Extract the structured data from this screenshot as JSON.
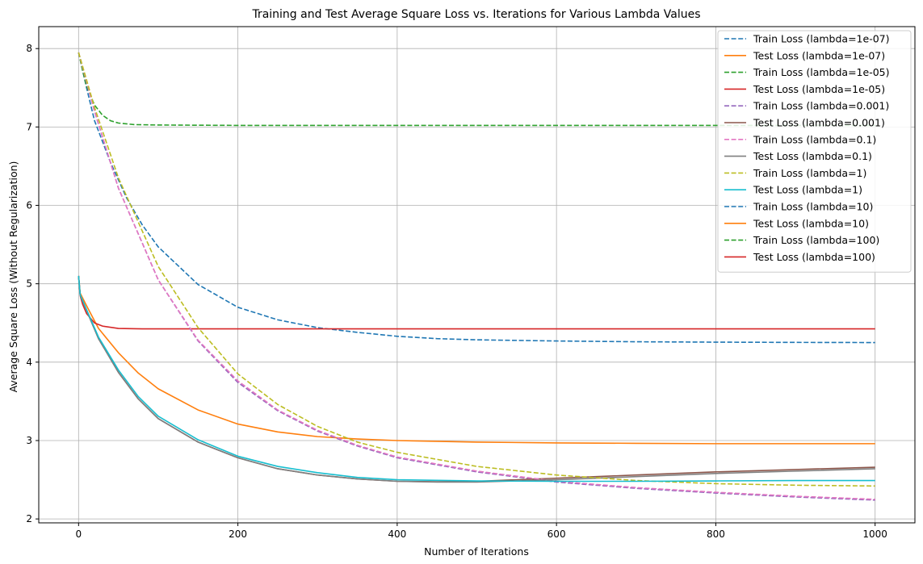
{
  "chart_data": {
    "type": "line",
    "title": "Training and Test Average Square Loss vs. Iterations for Various Lambda Values",
    "xlabel": "Number of Iterations",
    "ylabel": "Average Square Loss (Without Regularization)",
    "xlim": [
      -50,
      1050
    ],
    "ylim": [
      1.95,
      8.28
    ],
    "xticks": [
      0,
      200,
      400,
      600,
      800,
      1000
    ],
    "yticks": [
      2,
      3,
      4,
      5,
      6,
      7,
      8
    ],
    "xtick_labels": [
      "0",
      "200",
      "400",
      "600",
      "800",
      "1000"
    ],
    "ytick_labels": [
      "2",
      "3",
      "4",
      "5",
      "6",
      "7",
      "8"
    ],
    "grid": true,
    "legend": "top-right",
    "series": [
      {
        "name": "Train Loss (lambda=1e-07)",
        "color": "#1f77b4",
        "dash": "dashed",
        "points": [
          [
            0,
            7.95
          ],
          [
            10,
            7.5
          ],
          [
            20,
            7.08
          ],
          [
            40,
            6.55
          ],
          [
            60,
            6.1
          ],
          [
            80,
            5.75
          ],
          [
            100,
            5.47
          ],
          [
            150,
            4.99
          ],
          [
            200,
            4.7
          ],
          [
            250,
            4.54
          ],
          [
            300,
            4.44
          ],
          [
            350,
            4.38
          ],
          [
            400,
            4.33
          ],
          [
            450,
            4.3
          ],
          [
            500,
            4.285
          ],
          [
            600,
            4.27
          ],
          [
            700,
            4.26
          ],
          [
            800,
            4.255
          ],
          [
            900,
            4.252
          ],
          [
            1000,
            4.25
          ]
        ]
      },
      {
        "name": "Test Loss (lambda=1e-07)",
        "color": "#ff7f0e",
        "dash": "solid",
        "points": [
          [
            0,
            5.1
          ],
          [
            2,
            4.88
          ],
          [
            10,
            4.72
          ],
          [
            25,
            4.43
          ],
          [
            50,
            4.12
          ],
          [
            75,
            3.86
          ],
          [
            100,
            3.66
          ],
          [
            150,
            3.39
          ],
          [
            200,
            3.21
          ],
          [
            250,
            3.11
          ],
          [
            300,
            3.05
          ],
          [
            350,
            3.02
          ],
          [
            400,
            3.0
          ],
          [
            500,
            2.98
          ],
          [
            600,
            2.97
          ],
          [
            700,
            2.965
          ],
          [
            800,
            2.96
          ],
          [
            900,
            2.96
          ],
          [
            1000,
            2.96
          ]
        ]
      },
      {
        "name": "Train Loss (lambda=1e-05)",
        "color": "#2ca02c",
        "dash": "dashed",
        "points": [
          [
            0,
            7.95
          ],
          [
            5,
            7.72
          ],
          [
            10,
            7.52
          ],
          [
            20,
            7.28
          ],
          [
            30,
            7.15
          ],
          [
            40,
            7.08
          ],
          [
            50,
            7.05
          ],
          [
            70,
            7.03
          ],
          [
            100,
            7.025
          ],
          [
            200,
            7.02
          ],
          [
            400,
            7.02
          ],
          [
            600,
            7.02
          ],
          [
            800,
            7.02
          ],
          [
            1000,
            7.02
          ]
        ]
      },
      {
        "name": "Test Loss (lambda=1e-05)",
        "color": "#d62728",
        "dash": "solid",
        "points": [
          [
            0,
            5.1
          ],
          [
            2,
            4.85
          ],
          [
            5,
            4.74
          ],
          [
            10,
            4.62
          ],
          [
            20,
            4.5
          ],
          [
            30,
            4.46
          ],
          [
            50,
            4.43
          ],
          [
            80,
            4.425
          ],
          [
            150,
            4.425
          ],
          [
            400,
            4.425
          ],
          [
            700,
            4.425
          ],
          [
            1000,
            4.425
          ]
        ]
      },
      {
        "name": "Train Loss (lambda=0.001)",
        "color": "#9467bd",
        "dash": "dashed",
        "points": [
          [
            0,
            7.95
          ],
          [
            20,
            7.2
          ],
          [
            50,
            6.22
          ],
          [
            100,
            5.05
          ],
          [
            150,
            4.27
          ],
          [
            200,
            3.74
          ],
          [
            250,
            3.38
          ],
          [
            300,
            3.12
          ],
          [
            350,
            2.93
          ],
          [
            400,
            2.78
          ],
          [
            500,
            2.6
          ],
          [
            600,
            2.47
          ],
          [
            700,
            2.39
          ],
          [
            800,
            2.33
          ],
          [
            900,
            2.28
          ],
          [
            1000,
            2.24
          ]
        ]
      },
      {
        "name": "Test Loss (lambda=0.001)",
        "color": "#8c564b",
        "dash": "solid",
        "points": [
          [
            0,
            5.1
          ],
          [
            2,
            4.86
          ],
          [
            10,
            4.66
          ],
          [
            25,
            4.3
          ],
          [
            50,
            3.87
          ],
          [
            75,
            3.53
          ],
          [
            100,
            3.28
          ],
          [
            150,
            2.98
          ],
          [
            200,
            2.78
          ],
          [
            250,
            2.64
          ],
          [
            300,
            2.56
          ],
          [
            350,
            2.51
          ],
          [
            400,
            2.48
          ],
          [
            450,
            2.475
          ],
          [
            500,
            2.48
          ],
          [
            600,
            2.52
          ],
          [
            700,
            2.56
          ],
          [
            800,
            2.6
          ],
          [
            900,
            2.63
          ],
          [
            1000,
            2.66
          ]
        ]
      },
      {
        "name": "Train Loss (lambda=0.1)",
        "color": "#e377c2",
        "dash": "dashed",
        "points": [
          [
            0,
            7.95
          ],
          [
            20,
            7.2
          ],
          [
            50,
            6.22
          ],
          [
            100,
            5.05
          ],
          [
            150,
            4.28
          ],
          [
            200,
            3.76
          ],
          [
            250,
            3.39
          ],
          [
            300,
            3.13
          ],
          [
            350,
            2.94
          ],
          [
            400,
            2.79
          ],
          [
            500,
            2.61
          ],
          [
            600,
            2.48
          ],
          [
            700,
            2.4
          ],
          [
            800,
            2.34
          ],
          [
            900,
            2.29
          ],
          [
            1000,
            2.25
          ]
        ]
      },
      {
        "name": "Test Loss (lambda=0.1)",
        "color": "#7f7f7f",
        "dash": "solid",
        "points": [
          [
            0,
            5.1
          ],
          [
            2,
            4.86
          ],
          [
            10,
            4.66
          ],
          [
            25,
            4.3
          ],
          [
            50,
            3.87
          ],
          [
            75,
            3.53
          ],
          [
            100,
            3.28
          ],
          [
            150,
            2.98
          ],
          [
            200,
            2.78
          ],
          [
            250,
            2.64
          ],
          [
            300,
            2.56
          ],
          [
            350,
            2.51
          ],
          [
            400,
            2.48
          ],
          [
            450,
            2.47
          ],
          [
            500,
            2.47
          ],
          [
            600,
            2.5
          ],
          [
            700,
            2.54
          ],
          [
            800,
            2.58
          ],
          [
            900,
            2.61
          ],
          [
            1000,
            2.64
          ]
        ]
      },
      {
        "name": "Train Loss (lambda=1)",
        "color": "#bcbd22",
        "dash": "dashed",
        "points": [
          [
            0,
            7.95
          ],
          [
            20,
            7.25
          ],
          [
            50,
            6.35
          ],
          [
            100,
            5.22
          ],
          [
            150,
            4.44
          ],
          [
            200,
            3.85
          ],
          [
            250,
            3.46
          ],
          [
            300,
            3.18
          ],
          [
            350,
            2.98
          ],
          [
            400,
            2.85
          ],
          [
            500,
            2.67
          ],
          [
            600,
            2.56
          ],
          [
            700,
            2.49
          ],
          [
            800,
            2.45
          ],
          [
            900,
            2.43
          ],
          [
            1000,
            2.42
          ]
        ]
      },
      {
        "name": "Test Loss (lambda=1)",
        "color": "#17becf",
        "dash": "solid",
        "points": [
          [
            0,
            5.1
          ],
          [
            2,
            4.86
          ],
          [
            10,
            4.67
          ],
          [
            25,
            4.32
          ],
          [
            50,
            3.9
          ],
          [
            75,
            3.56
          ],
          [
            100,
            3.31
          ],
          [
            150,
            3.01
          ],
          [
            200,
            2.8
          ],
          [
            250,
            2.67
          ],
          [
            300,
            2.59
          ],
          [
            350,
            2.53
          ],
          [
            400,
            2.5
          ],
          [
            500,
            2.485
          ],
          [
            600,
            2.48
          ],
          [
            700,
            2.48
          ],
          [
            800,
            2.485
          ],
          [
            900,
            2.49
          ],
          [
            1000,
            2.49
          ]
        ]
      },
      {
        "name": "Train Loss (lambda=10)",
        "color": "#1f77b4",
        "dash": "dashed",
        "points": []
      },
      {
        "name": "Test Loss (lambda=10)",
        "color": "#ff7f0e",
        "dash": "solid",
        "points": []
      },
      {
        "name": "Train Loss (lambda=100)",
        "color": "#2ca02c",
        "dash": "dashed",
        "points": []
      },
      {
        "name": "Test Loss (lambda=100)",
        "color": "#d62728",
        "dash": "solid",
        "points": []
      }
    ]
  }
}
